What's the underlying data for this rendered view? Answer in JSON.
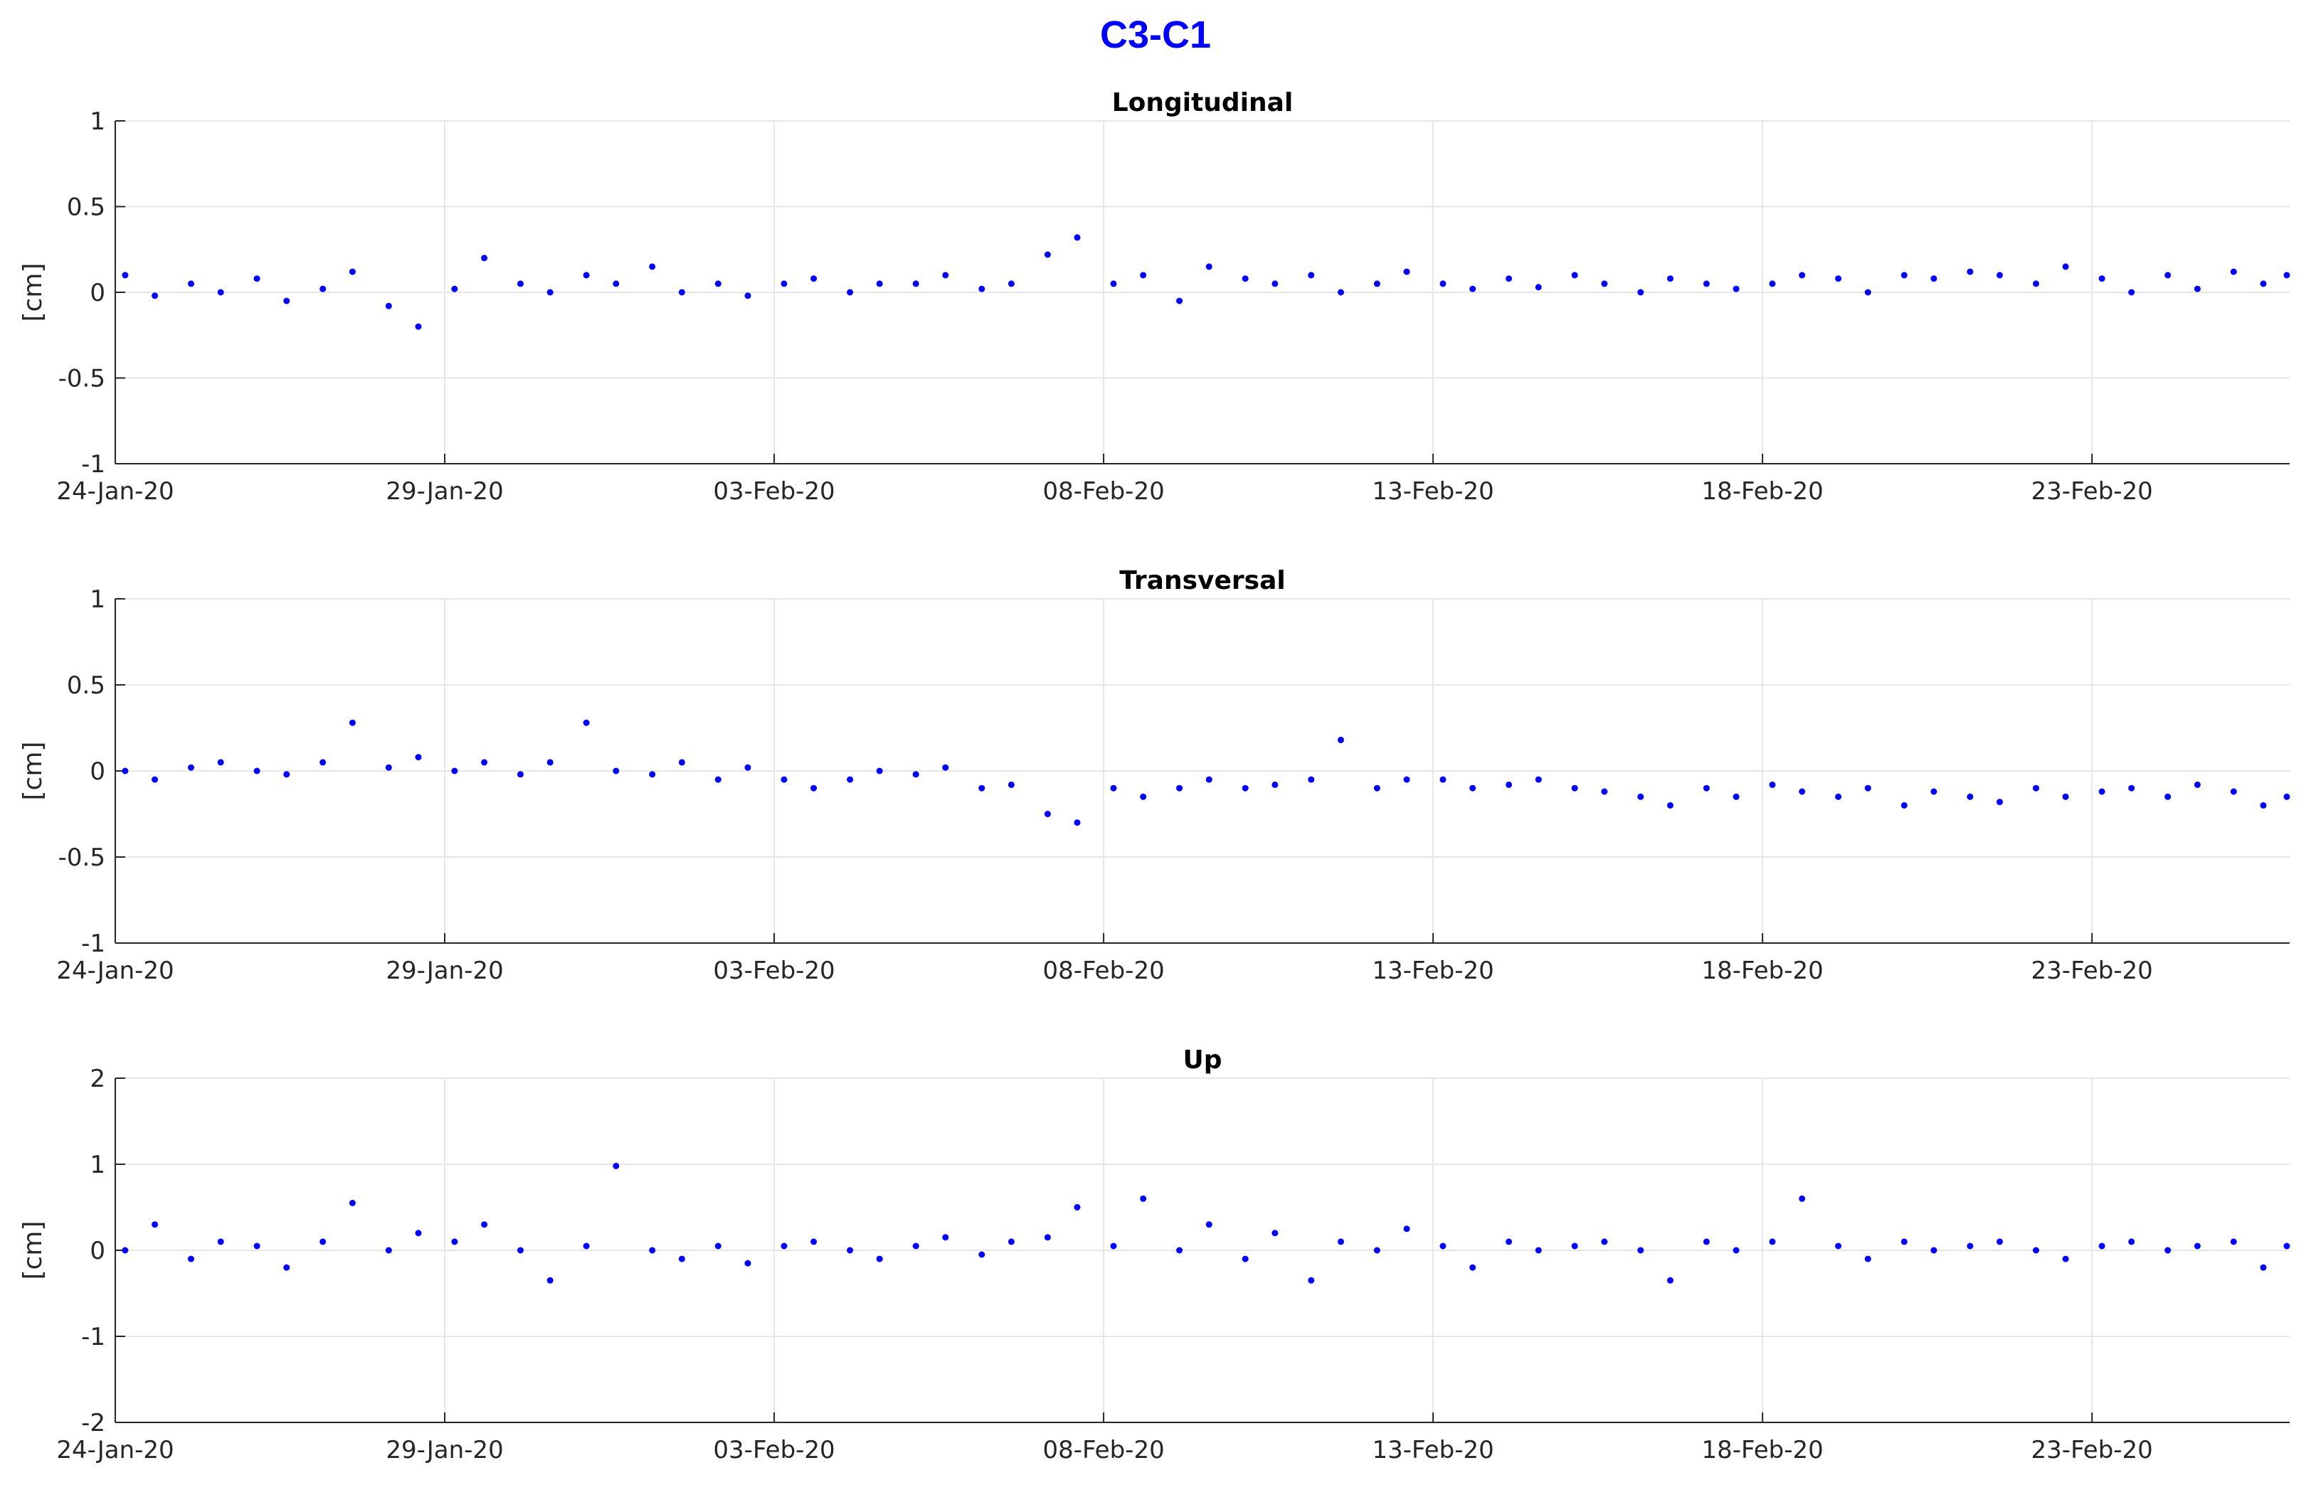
{
  "figure": {
    "title": "C3-C1",
    "title_color": "#0000FF"
  },
  "chart_data": [
    {
      "type": "scatter",
      "title": "Longitudinal",
      "xlabel": "",
      "ylabel": "[cm]",
      "xlim": [
        "2020-01-24",
        "2020-02-26"
      ],
      "ylim": [
        -1,
        1
      ],
      "yticks": [
        1,
        0.5,
        0,
        -0.5,
        -1
      ],
      "ytick_labels": [
        "1",
        "0.5",
        "0",
        "-0.5",
        "-1"
      ],
      "xticks": [
        "2020-01-24",
        "2020-01-29",
        "2020-02-03",
        "2020-02-08",
        "2020-02-13",
        "2020-02-18",
        "2020-02-23"
      ],
      "xtick_labels": [
        "24-Jan-20",
        "29-Jan-20",
        "03-Feb-20",
        "08-Feb-20",
        "13-Feb-20",
        "18-Feb-20",
        "23-Feb-20"
      ],
      "grid": true,
      "color": "#0000FF",
      "series": [
        {
          "x": [
            "2020-01-24",
            "2020-01-24",
            "2020-01-25",
            "2020-01-25",
            "2020-01-26",
            "2020-01-26",
            "2020-01-27",
            "2020-01-27",
            "2020-01-28",
            "2020-01-28",
            "2020-01-29",
            "2020-01-29",
            "2020-01-30",
            "2020-01-30",
            "2020-01-31",
            "2020-01-31",
            "2020-02-01",
            "2020-02-01",
            "2020-02-02",
            "2020-02-02",
            "2020-02-03",
            "2020-02-03",
            "2020-02-04",
            "2020-02-04",
            "2020-02-05",
            "2020-02-05",
            "2020-02-06",
            "2020-02-06",
            "2020-02-07",
            "2020-02-07",
            "2020-02-08",
            "2020-02-08",
            "2020-02-09",
            "2020-02-09",
            "2020-02-10",
            "2020-02-10",
            "2020-02-11",
            "2020-02-11",
            "2020-02-12",
            "2020-02-12",
            "2020-02-13",
            "2020-02-13",
            "2020-02-14",
            "2020-02-14",
            "2020-02-15",
            "2020-02-15",
            "2020-02-16",
            "2020-02-16",
            "2020-02-17",
            "2020-02-17",
            "2020-02-18",
            "2020-02-18",
            "2020-02-19",
            "2020-02-19",
            "2020-02-20",
            "2020-02-20",
            "2020-02-21",
            "2020-02-21",
            "2020-02-22",
            "2020-02-22",
            "2020-02-23",
            "2020-02-23",
            "2020-02-24",
            "2020-02-24",
            "2020-02-25",
            "2020-02-25",
            "2020-02-26"
          ],
          "y": [
            0.1,
            -0.02,
            0.05,
            0.0,
            0.08,
            -0.05,
            0.02,
            0.12,
            -0.08,
            -0.2,
            0.02,
            0.2,
            0.05,
            0.0,
            0.1,
            0.05,
            0.15,
            0.0,
            0.05,
            -0.02,
            0.05,
            0.08,
            0.0,
            0.05,
            0.05,
            0.1,
            0.02,
            0.05,
            0.22,
            0.32,
            0.05,
            0.1,
            -0.05,
            0.15,
            0.08,
            0.05,
            0.1,
            0.0,
            0.05,
            0.12,
            0.05,
            0.02,
            0.08,
            0.03,
            0.1,
            0.05,
            0.0,
            0.08,
            0.05,
            0.02,
            0.05,
            0.1,
            0.08,
            0.0,
            0.1,
            0.08,
            0.12,
            0.1,
            0.05,
            0.15,
            0.08,
            0.0,
            0.1,
            0.02,
            0.12,
            0.05,
            0.1
          ]
        }
      ]
    },
    {
      "type": "scatter",
      "title": "Transversal",
      "xlabel": "",
      "ylabel": "[cm]",
      "xlim": [
        "2020-01-24",
        "2020-02-26"
      ],
      "ylim": [
        -1,
        1
      ],
      "yticks": [
        1,
        0.5,
        0,
        -0.5,
        -1
      ],
      "ytick_labels": [
        "1",
        "0.5",
        "0",
        "-0.5",
        "-1"
      ],
      "xticks": [
        "2020-01-24",
        "2020-01-29",
        "2020-02-03",
        "2020-02-08",
        "2020-02-13",
        "2020-02-18",
        "2020-02-23"
      ],
      "xtick_labels": [
        "24-Jan-20",
        "29-Jan-20",
        "03-Feb-20",
        "08-Feb-20",
        "13-Feb-20",
        "18-Feb-20",
        "23-Feb-20"
      ],
      "grid": true,
      "color": "#0000FF",
      "series": [
        {
          "x": [
            "2020-01-24",
            "2020-01-24",
            "2020-01-25",
            "2020-01-25",
            "2020-01-26",
            "2020-01-26",
            "2020-01-27",
            "2020-01-27",
            "2020-01-28",
            "2020-01-28",
            "2020-01-29",
            "2020-01-29",
            "2020-01-30",
            "2020-01-30",
            "2020-01-31",
            "2020-01-31",
            "2020-02-01",
            "2020-02-01",
            "2020-02-02",
            "2020-02-02",
            "2020-02-03",
            "2020-02-03",
            "2020-02-04",
            "2020-02-04",
            "2020-02-05",
            "2020-02-05",
            "2020-02-06",
            "2020-02-06",
            "2020-02-07",
            "2020-02-07",
            "2020-02-08",
            "2020-02-08",
            "2020-02-09",
            "2020-02-09",
            "2020-02-10",
            "2020-02-10",
            "2020-02-11",
            "2020-02-11",
            "2020-02-12",
            "2020-02-12",
            "2020-02-13",
            "2020-02-13",
            "2020-02-14",
            "2020-02-14",
            "2020-02-15",
            "2020-02-15",
            "2020-02-16",
            "2020-02-16",
            "2020-02-17",
            "2020-02-17",
            "2020-02-18",
            "2020-02-18",
            "2020-02-19",
            "2020-02-19",
            "2020-02-20",
            "2020-02-20",
            "2020-02-21",
            "2020-02-21",
            "2020-02-22",
            "2020-02-22",
            "2020-02-23",
            "2020-02-23",
            "2020-02-24",
            "2020-02-24",
            "2020-02-25",
            "2020-02-25",
            "2020-02-26"
          ],
          "y": [
            0.0,
            -0.05,
            0.02,
            0.05,
            0.0,
            -0.02,
            0.05,
            0.28,
            0.02,
            0.08,
            0.0,
            0.05,
            -0.02,
            0.05,
            0.28,
            0.0,
            -0.02,
            0.05,
            -0.05,
            0.02,
            -0.05,
            -0.1,
            -0.05,
            0.0,
            -0.02,
            0.02,
            -0.1,
            -0.08,
            -0.25,
            -0.3,
            -0.1,
            -0.15,
            -0.1,
            -0.05,
            -0.1,
            -0.08,
            -0.05,
            0.18,
            -0.1,
            -0.05,
            -0.05,
            -0.1,
            -0.08,
            -0.05,
            -0.1,
            -0.12,
            -0.15,
            -0.2,
            -0.1,
            -0.15,
            -0.08,
            -0.12,
            -0.15,
            -0.1,
            -0.2,
            -0.12,
            -0.15,
            -0.18,
            -0.1,
            -0.15,
            -0.12,
            -0.1,
            -0.15,
            -0.08,
            -0.12,
            -0.2,
            -0.15
          ]
        }
      ]
    },
    {
      "type": "scatter",
      "title": "Up",
      "xlabel": "",
      "ylabel": "[cm]",
      "xlim": [
        "2020-01-24",
        "2020-02-26"
      ],
      "ylim": [
        -2,
        2
      ],
      "yticks": [
        2,
        1,
        0,
        -1,
        -2
      ],
      "ytick_labels": [
        "2",
        "1",
        "0",
        "-1",
        "-2"
      ],
      "xticks": [
        "2020-01-24",
        "2020-01-29",
        "2020-02-03",
        "2020-02-08",
        "2020-02-13",
        "2020-02-18",
        "2020-02-23"
      ],
      "xtick_labels": [
        "24-Jan-20",
        "29-Jan-20",
        "03-Feb-20",
        "08-Feb-20",
        "13-Feb-20",
        "18-Feb-20",
        "23-Feb-20"
      ],
      "grid": true,
      "color": "#0000FF",
      "series": [
        {
          "x": [
            "2020-01-24",
            "2020-01-24",
            "2020-01-25",
            "2020-01-25",
            "2020-01-26",
            "2020-01-26",
            "2020-01-27",
            "2020-01-27",
            "2020-01-28",
            "2020-01-28",
            "2020-01-29",
            "2020-01-29",
            "2020-01-30",
            "2020-01-30",
            "2020-01-31",
            "2020-01-31",
            "2020-02-01",
            "2020-02-01",
            "2020-02-02",
            "2020-02-02",
            "2020-02-03",
            "2020-02-03",
            "2020-02-04",
            "2020-02-04",
            "2020-02-05",
            "2020-02-05",
            "2020-02-06",
            "2020-02-06",
            "2020-02-07",
            "2020-02-07",
            "2020-02-08",
            "2020-02-08",
            "2020-02-09",
            "2020-02-09",
            "2020-02-10",
            "2020-02-10",
            "2020-02-11",
            "2020-02-11",
            "2020-02-12",
            "2020-02-12",
            "2020-02-13",
            "2020-02-13",
            "2020-02-14",
            "2020-02-14",
            "2020-02-15",
            "2020-02-15",
            "2020-02-16",
            "2020-02-16",
            "2020-02-17",
            "2020-02-17",
            "2020-02-18",
            "2020-02-18",
            "2020-02-19",
            "2020-02-19",
            "2020-02-20",
            "2020-02-20",
            "2020-02-21",
            "2020-02-21",
            "2020-02-22",
            "2020-02-22",
            "2020-02-23",
            "2020-02-23",
            "2020-02-24",
            "2020-02-24",
            "2020-02-25",
            "2020-02-25",
            "2020-02-26"
          ],
          "y": [
            0.0,
            0.3,
            -0.1,
            0.1,
            0.05,
            -0.2,
            0.1,
            0.55,
            0.0,
            0.2,
            0.1,
            0.3,
            0.0,
            -0.35,
            0.05,
            0.98,
            0.0,
            -0.1,
            0.05,
            -0.15,
            0.05,
            0.1,
            0.0,
            -0.1,
            0.05,
            0.15,
            -0.05,
            0.1,
            0.15,
            0.5,
            0.05,
            0.6,
            0.0,
            0.3,
            -0.1,
            0.2,
            -0.35,
            0.1,
            0.0,
            0.25,
            0.05,
            -0.2,
            0.1,
            0.0,
            0.05,
            0.1,
            0.0,
            -0.35,
            0.1,
            0.0,
            0.1,
            0.6,
            0.05,
            -0.1,
            0.1,
            0.0,
            0.05,
            0.1,
            0.0,
            -0.1,
            0.05,
            0.1,
            0.0,
            0.05,
            0.1,
            -0.2,
            0.05
          ]
        }
      ]
    }
  ]
}
